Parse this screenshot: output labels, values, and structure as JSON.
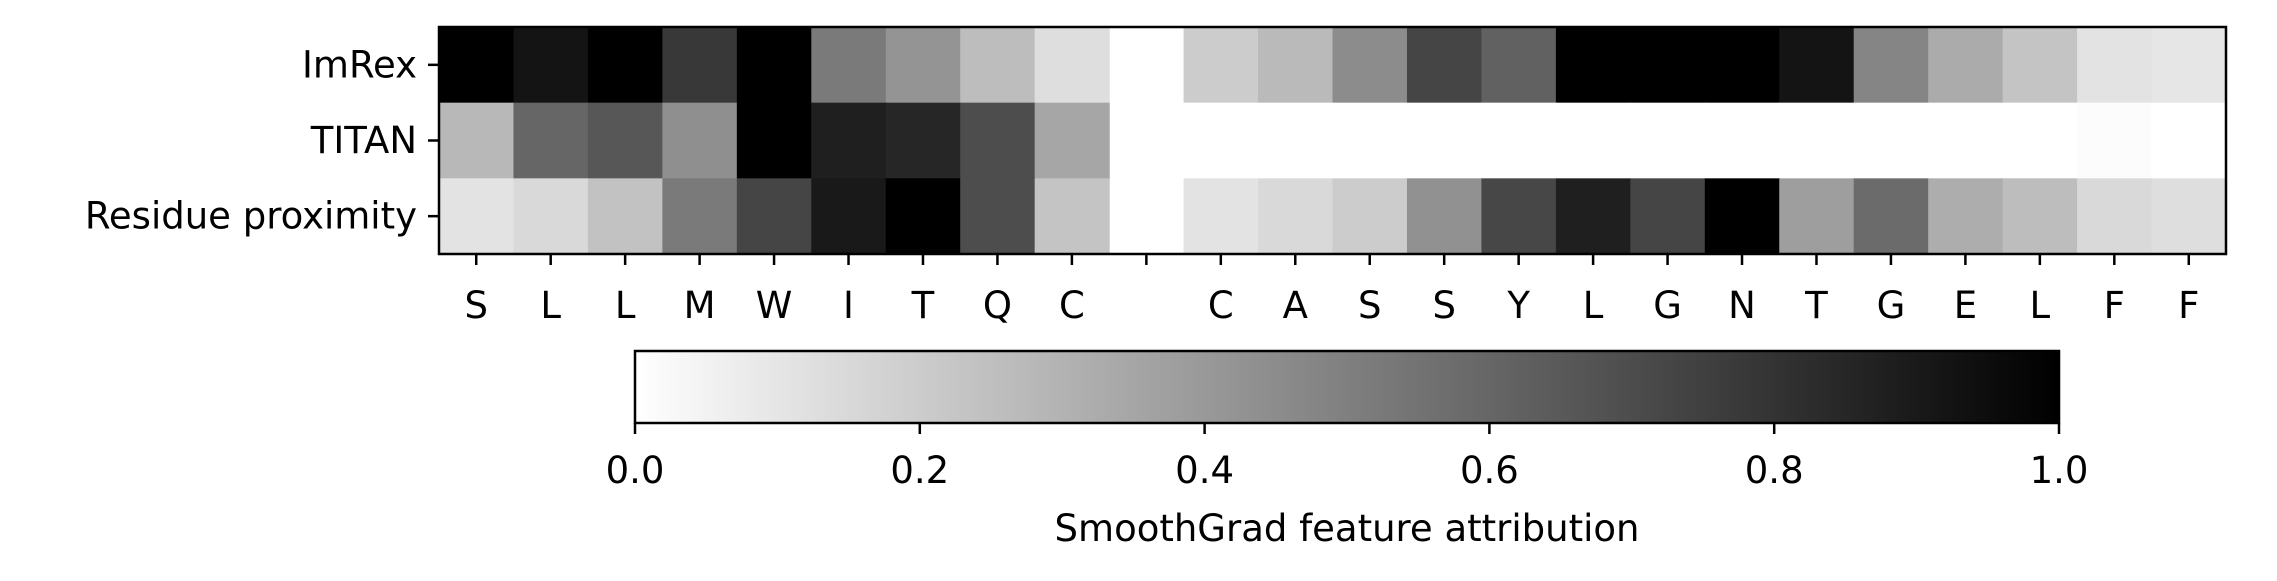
{
  "chart_data": {
    "type": "heatmap",
    "rows": [
      "ImRex",
      "TITAN",
      "Residue proximity"
    ],
    "columns": [
      "S",
      "L",
      "L",
      "M",
      "W",
      "I",
      "T",
      "Q",
      "C",
      "",
      "C",
      "A",
      "S",
      "S",
      "Y",
      "L",
      "G",
      "N",
      "T",
      "G",
      "E",
      "L",
      "F",
      "F"
    ],
    "values": [
      [
        1.0,
        0.92,
        1.0,
        0.78,
        1.0,
        0.52,
        0.42,
        0.26,
        0.13,
        null,
        0.2,
        0.27,
        0.45,
        0.73,
        0.62,
        1.0,
        1.0,
        1.0,
        0.92,
        0.48,
        0.33,
        0.23,
        0.11,
        0.1
      ],
      [
        0.28,
        0.6,
        0.66,
        0.44,
        1.0,
        0.88,
        0.85,
        0.7,
        0.35,
        null,
        0.0,
        0.0,
        0.0,
        0.0,
        0.0,
        0.0,
        0.0,
        0.0,
        0.0,
        0.0,
        0.0,
        0.0,
        0.01,
        0.0
      ],
      [
        0.11,
        0.15,
        0.24,
        0.52,
        0.73,
        0.9,
        1.0,
        0.7,
        0.23,
        null,
        0.11,
        0.15,
        0.2,
        0.43,
        0.72,
        0.88,
        0.73,
        1.0,
        0.38,
        0.58,
        0.32,
        0.26,
        0.15,
        0.13
      ]
    ],
    "colormap": {
      "low": "#ffffff",
      "high": "#000000"
    },
    "colorbar": {
      "label": "SmoothGrad feature attribution",
      "range": [
        0.0,
        1.0
      ],
      "ticks": [
        "0.0",
        "0.2",
        "0.4",
        "0.6",
        "0.8",
        "1.0"
      ],
      "tick_values": [
        0.0,
        0.2,
        0.4,
        0.6,
        0.8,
        1.0
      ]
    }
  }
}
